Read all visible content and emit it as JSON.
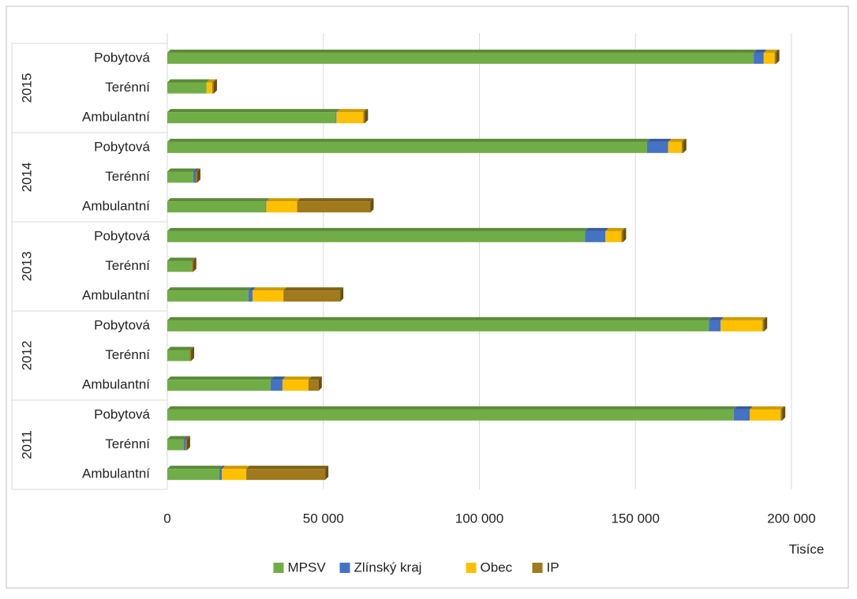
{
  "chart_data": {
    "type": "bar",
    "orientation": "horizontal",
    "stacked": true,
    "groups": [
      "2011",
      "2012",
      "2013",
      "2014",
      "2015"
    ],
    "categories": [
      "Ambulantní",
      "Terénní",
      "Pobytová",
      "Ambulantní",
      "Terénní",
      "Pobytová",
      "Ambulantní",
      "Terénní",
      "Pobytová",
      "Ambulantní",
      "Terénní",
      "Pobytová",
      "Ambulantní",
      "Terénní",
      "Pobytová"
    ],
    "series": [
      {
        "name": "MPSV",
        "color": "#70ad47",
        "values": [
          16700,
          5300,
          181500,
          33100,
          7100,
          173500,
          26000,
          7800,
          133800,
          31400,
          8300,
          153700,
          53900,
          12600,
          187900
        ]
      },
      {
        "name": "Zlínský kraj",
        "color": "#4472c4",
        "values": [
          800,
          500,
          5100,
          3800,
          0,
          3800,
          1300,
          0,
          6600,
          300,
          800,
          6800,
          300,
          0,
          3200
        ]
      },
      {
        "name": "Obec",
        "color": "#ffc000",
        "values": [
          7800,
          0,
          9900,
          8300,
          0,
          13400,
          9900,
          0,
          5100,
          9900,
          0,
          4300,
          8600,
          1800,
          3500
        ]
      },
      {
        "name": "IP",
        "color": "#a07a1c",
        "values": [
          25300,
          500,
          500,
          3300,
          500,
          500,
          18200,
          500,
          500,
          23500,
          500,
          500,
          500,
          500,
          500
        ]
      }
    ],
    "xlabel": "Tisíce",
    "xlim": [
      0,
      210000
    ],
    "xticks": [
      0,
      {
        "value": 50000,
        "label": "50 000"
      },
      {
        "value": 100000,
        "label": "100 000"
      },
      {
        "value": 150000,
        "label": "150 000"
      },
      {
        "value": 200000,
        "label": "200 000"
      }
    ],
    "grid": true,
    "legend": "bottom"
  }
}
